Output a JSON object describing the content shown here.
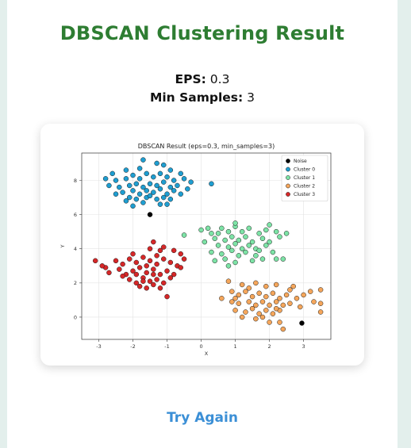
{
  "page": {
    "title": "DBSCAN Clustering Result",
    "params": [
      {
        "key": "EPS:",
        "value": "0.3"
      },
      {
        "key": "Min Samples:",
        "value": "3"
      }
    ],
    "try_again_label": "Try Again"
  },
  "colors": {
    "title": "#2e7d32",
    "link": "#3b8fd6",
    "background": "#e3efec"
  },
  "chart_data": {
    "type": "scatter",
    "title": "DBSCAN Result (eps=0.3, min_samples=3)",
    "xlabel": "X",
    "ylabel": "Y",
    "xlim": [
      -3.5,
      3.8
    ],
    "ylim": [
      -1.3,
      9.6
    ],
    "x_ticks": [
      -3,
      -2,
      -1,
      0,
      1,
      2,
      3
    ],
    "y_ticks": [
      0,
      2,
      4,
      6,
      8
    ],
    "grid": true,
    "legend_position": "top-right",
    "series": [
      {
        "name": "Noise",
        "color": "#000000",
        "points": [
          [
            -1.5,
            6.0
          ],
          [
            2.95,
            -0.35
          ]
        ]
      },
      {
        "name": "Cluster 0",
        "color": "#1f9ed1",
        "points": [
          [
            -1.7,
            9.2
          ],
          [
            -1.3,
            9.0
          ],
          [
            -1.1,
            8.9
          ],
          [
            -0.9,
            8.6
          ],
          [
            -1.8,
            8.7
          ],
          [
            -2.2,
            8.6
          ],
          [
            -2.6,
            8.4
          ],
          [
            -2.5,
            8.0
          ],
          [
            -2.2,
            8.1
          ],
          [
            -2.0,
            8.3
          ],
          [
            -1.8,
            8.1
          ],
          [
            -1.6,
            8.4
          ],
          [
            -1.4,
            8.2
          ],
          [
            -1.2,
            8.4
          ],
          [
            -1.0,
            8.2
          ],
          [
            -0.8,
            8.0
          ],
          [
            -0.6,
            8.4
          ],
          [
            -0.5,
            8.1
          ],
          [
            -2.4,
            7.6
          ],
          [
            -2.1,
            7.7
          ],
          [
            -1.9,
            7.8
          ],
          [
            -1.7,
            7.6
          ],
          [
            -1.5,
            7.8
          ],
          [
            -1.3,
            7.7
          ],
          [
            -1.1,
            7.9
          ],
          [
            -0.9,
            7.6
          ],
          [
            -0.7,
            7.7
          ],
          [
            -2.3,
            7.3
          ],
          [
            -2.0,
            7.4
          ],
          [
            -1.8,
            7.2
          ],
          [
            -1.6,
            7.4
          ],
          [
            -1.4,
            7.3
          ],
          [
            -1.2,
            7.5
          ],
          [
            -1.0,
            7.2
          ],
          [
            -0.8,
            7.4
          ],
          [
            -2.1,
            7.0
          ],
          [
            -1.9,
            6.9
          ],
          [
            -1.6,
            7.0
          ],
          [
            -1.3,
            6.9
          ],
          [
            -1.1,
            7.0
          ],
          [
            -2.2,
            6.8
          ],
          [
            -1.7,
            6.7
          ],
          [
            -1.0,
            6.6
          ],
          [
            -0.9,
            6.9
          ],
          [
            -0.4,
            7.5
          ],
          [
            -0.3,
            7.9
          ],
          [
            0.3,
            7.8
          ],
          [
            -2.7,
            7.7
          ],
          [
            -2.8,
            8.1
          ],
          [
            -2.0,
            6.5
          ],
          [
            -1.2,
            6.6
          ],
          [
            -1.5,
            7.1
          ],
          [
            -0.6,
            7.2
          ],
          [
            -2.5,
            7.2
          ]
        ]
      },
      {
        "name": "Cluster 1",
        "color": "#7de3a6",
        "points": [
          [
            0.0,
            5.1
          ],
          [
            0.3,
            4.9
          ],
          [
            0.6,
            5.2
          ],
          [
            0.8,
            5.0
          ],
          [
            1.0,
            5.3
          ],
          [
            1.2,
            5.0
          ],
          [
            1.4,
            5.2
          ],
          [
            1.7,
            4.9
          ],
          [
            1.9,
            5.1
          ],
          [
            2.2,
            5.0
          ],
          [
            0.4,
            4.6
          ],
          [
            0.7,
            4.5
          ],
          [
            0.9,
            4.7
          ],
          [
            1.1,
            4.5
          ],
          [
            1.3,
            4.7
          ],
          [
            1.5,
            4.4
          ],
          [
            1.8,
            4.6
          ],
          [
            2.0,
            4.4
          ],
          [
            2.3,
            4.7
          ],
          [
            0.5,
            4.2
          ],
          [
            0.8,
            4.1
          ],
          [
            1.0,
            4.3
          ],
          [
            1.2,
            4.0
          ],
          [
            1.4,
            4.2
          ],
          [
            1.6,
            4.0
          ],
          [
            1.9,
            4.2
          ],
          [
            0.3,
            3.8
          ],
          [
            0.6,
            3.7
          ],
          [
            0.9,
            3.9
          ],
          [
            1.1,
            3.6
          ],
          [
            1.3,
            3.8
          ],
          [
            1.6,
            3.6
          ],
          [
            0.4,
            3.3
          ],
          [
            0.7,
            3.4
          ],
          [
            1.0,
            3.2
          ],
          [
            1.5,
            3.3
          ],
          [
            1.8,
            3.4
          ],
          [
            2.4,
            3.4
          ],
          [
            2.2,
            3.4
          ],
          [
            -0.5,
            4.8
          ],
          [
            0.1,
            4.4
          ],
          [
            2.5,
            4.9
          ],
          [
            2.0,
            5.4
          ],
          [
            1.0,
            5.5
          ],
          [
            0.2,
            5.2
          ],
          [
            0.8,
            3.0
          ],
          [
            1.7,
            3.9
          ],
          [
            2.1,
            3.8
          ],
          [
            0.5,
            4.9
          ]
        ]
      },
      {
        "name": "Cluster 2",
        "color": "#f5a65b",
        "points": [
          [
            0.8,
            2.1
          ],
          [
            1.2,
            1.9
          ],
          [
            1.6,
            2.0
          ],
          [
            1.9,
            1.8
          ],
          [
            2.2,
            1.9
          ],
          [
            2.7,
            1.8
          ],
          [
            3.2,
            1.5
          ],
          [
            0.9,
            1.5
          ],
          [
            1.1,
            1.3
          ],
          [
            1.3,
            1.5
          ],
          [
            1.5,
            1.2
          ],
          [
            1.7,
            1.4
          ],
          [
            1.9,
            1.2
          ],
          [
            2.1,
            1.4
          ],
          [
            2.3,
            1.1
          ],
          [
            2.5,
            1.3
          ],
          [
            2.8,
            1.1
          ],
          [
            3.0,
            1.3
          ],
          [
            0.9,
            0.9
          ],
          [
            1.1,
            0.8
          ],
          [
            1.4,
            0.9
          ],
          [
            1.6,
            0.7
          ],
          [
            1.8,
            0.9
          ],
          [
            2.0,
            0.7
          ],
          [
            2.2,
            0.9
          ],
          [
            2.4,
            0.7
          ],
          [
            2.6,
            0.8
          ],
          [
            1.0,
            0.4
          ],
          [
            1.3,
            0.3
          ],
          [
            1.5,
            0.5
          ],
          [
            1.7,
            0.2
          ],
          [
            1.9,
            0.4
          ],
          [
            2.1,
            0.2
          ],
          [
            2.3,
            0.4
          ],
          [
            1.2,
            0.0
          ],
          [
            1.6,
            -0.1
          ],
          [
            1.8,
            0.0
          ],
          [
            2.0,
            -0.3
          ],
          [
            2.3,
            -0.3
          ],
          [
            2.4,
            -0.7
          ],
          [
            3.5,
            1.6
          ],
          [
            3.3,
            0.9
          ],
          [
            3.5,
            0.8
          ],
          [
            3.5,
            0.3
          ],
          [
            0.6,
            1.1
          ],
          [
            2.9,
            0.6
          ],
          [
            1.4,
            1.7
          ],
          [
            2.6,
            1.6
          ],
          [
            1.0,
            1.1
          ],
          [
            2.2,
            0.5
          ]
        ]
      },
      {
        "name": "Cluster 3",
        "color": "#d62728",
        "points": [
          [
            -1.4,
            4.4
          ],
          [
            -1.1,
            4.1
          ],
          [
            -0.8,
            3.9
          ],
          [
            -0.6,
            3.7
          ],
          [
            -3.1,
            3.3
          ],
          [
            -2.8,
            2.9
          ],
          [
            -2.5,
            3.3
          ],
          [
            -2.3,
            3.1
          ],
          [
            -2.1,
            3.4
          ],
          [
            -1.9,
            3.2
          ],
          [
            -1.7,
            3.5
          ],
          [
            -1.5,
            3.3
          ],
          [
            -1.3,
            3.6
          ],
          [
            -1.1,
            3.4
          ],
          [
            -0.9,
            3.2
          ],
          [
            -0.7,
            3.0
          ],
          [
            -0.5,
            3.4
          ],
          [
            -2.7,
            2.6
          ],
          [
            -2.4,
            2.8
          ],
          [
            -2.2,
            2.5
          ],
          [
            -2.0,
            2.7
          ],
          [
            -1.8,
            2.9
          ],
          [
            -1.6,
            2.6
          ],
          [
            -1.4,
            2.8
          ],
          [
            -1.2,
            2.5
          ],
          [
            -1.0,
            2.7
          ],
          [
            -0.8,
            2.5
          ],
          [
            -2.1,
            2.2
          ],
          [
            -1.9,
            2.0
          ],
          [
            -1.7,
            2.3
          ],
          [
            -1.5,
            2.1
          ],
          [
            -1.3,
            2.2
          ],
          [
            -1.1,
            2.0
          ],
          [
            -0.9,
            2.3
          ],
          [
            -1.8,
            1.8
          ],
          [
            -1.6,
            1.7
          ],
          [
            -1.4,
            1.9
          ],
          [
            -1.2,
            1.7
          ],
          [
            -1.0,
            1.2
          ],
          [
            -2.0,
            3.7
          ],
          [
            -1.5,
            4.0
          ],
          [
            -1.2,
            3.9
          ],
          [
            -2.9,
            3.0
          ],
          [
            -1.9,
            2.5
          ],
          [
            -1.6,
            3.0
          ],
          [
            -1.3,
            3.1
          ],
          [
            -0.6,
            2.9
          ],
          [
            -2.3,
            2.4
          ],
          [
            -1.7,
            2.1
          ],
          [
            -1.4,
            2.5
          ]
        ]
      }
    ]
  }
}
